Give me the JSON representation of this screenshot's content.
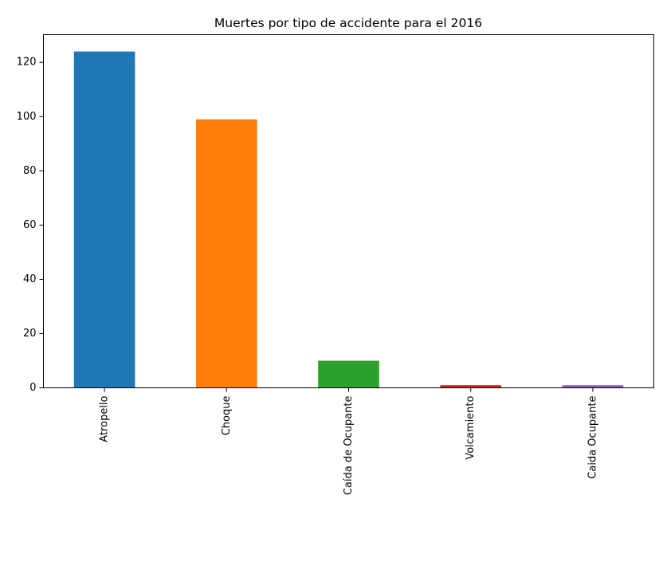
{
  "chart_data": {
    "type": "bar",
    "title": "Muertes por tipo de accidente para el 2016",
    "xlabel": "",
    "ylabel": "",
    "categories": [
      "Atropello",
      "Choque",
      "Caída de Ocupante",
      "Volcamiento",
      "Caida Ocupante"
    ],
    "values": [
      124,
      99,
      10,
      1,
      1
    ],
    "colors": [
      "#1f77b4",
      "#ff7f0e",
      "#2ca02c",
      "#d62728",
      "#9467bd"
    ],
    "ylim": [
      0,
      130.2
    ],
    "yticks": [
      0,
      20,
      40,
      60,
      80,
      100,
      120
    ],
    "grid": false,
    "legend": "none"
  }
}
